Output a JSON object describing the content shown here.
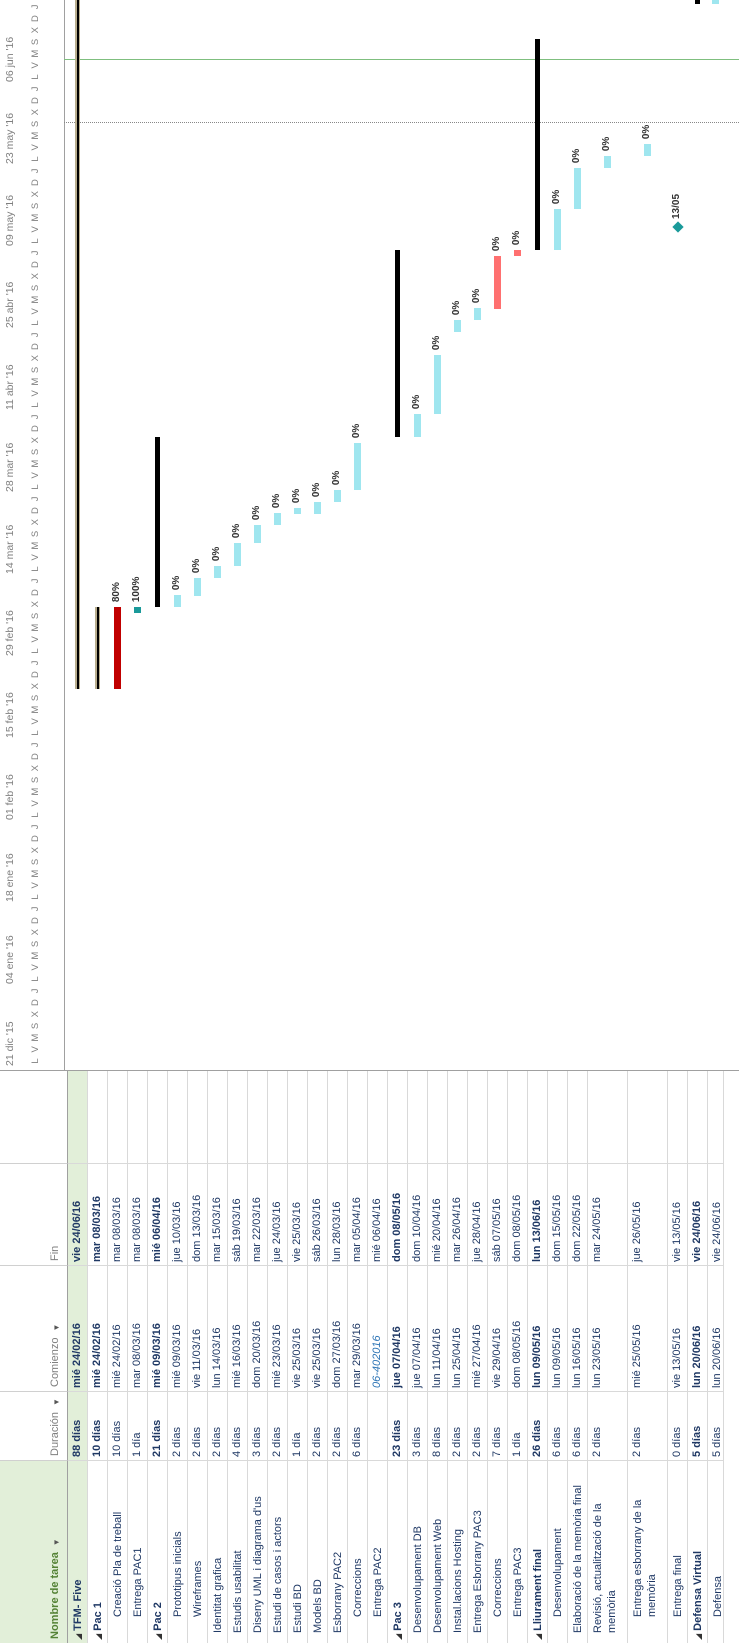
{
  "headers": {
    "name": "Nombre de tarea",
    "duration": "Duración",
    "start": "Comienzo",
    "end": "Fin"
  },
  "rows": [
    {
      "name": "TFM- Five",
      "dur": "88 días",
      "start": "mié 24/02/16",
      "end": "vie 24/06/16",
      "level": 0,
      "summary": true,
      "collapse": true,
      "hl": true
    },
    {
      "name": "Pac 1",
      "dur": "10 días",
      "start": "mié 24/02/16",
      "end": "mar 08/03/16",
      "level": 0,
      "summary": true,
      "collapse": true
    },
    {
      "name": "Creació Pla de treball",
      "dur": "10 días",
      "start": "mié 24/02/16",
      "end": "mar 08/03/16",
      "level": 2
    },
    {
      "name": "Entrega PAC1",
      "dur": "1 día",
      "start": "mar 08/03/16",
      "end": "mar 08/03/16",
      "level": 2
    },
    {
      "name": "Pac 2",
      "dur": "21 días",
      "start": "mié 09/03/16",
      "end": "mié 06/04/16",
      "level": 0,
      "summary": true,
      "collapse": true
    },
    {
      "name": "Prototipus inicials",
      "dur": "2 días",
      "start": "mié 09/03/16",
      "end": "jue 10/03/16",
      "level": 2
    },
    {
      "name": "Wireframes",
      "dur": "2 días",
      "start": "vie 11/03/16",
      "end": "dom 13/03/16",
      "level": 2
    },
    {
      "name": "Identitat grafica",
      "dur": "2 días",
      "start": "lun 14/03/16",
      "end": "mar 15/03/16",
      "level": 1
    },
    {
      "name": "Estudis usabilitat",
      "dur": "4 días",
      "start": "mié 16/03/16",
      "end": "sáb 19/03/16",
      "level": 1
    },
    {
      "name": "Diseny UML i diagrama d'us",
      "dur": "3 días",
      "start": "dom 20/03/16",
      "end": "mar 22/03/16",
      "level": 1
    },
    {
      "name": "Estudi de casos i actors",
      "dur": "2 días",
      "start": "mié 23/03/16",
      "end": "jue 24/03/16",
      "level": 1
    },
    {
      "name": "Estudi BD",
      "dur": "1 día",
      "start": "vie 25/03/16",
      "end": "vie 25/03/16",
      "level": 1
    },
    {
      "name": "Models BD",
      "dur": "2 días",
      "start": "vie 25/03/16",
      "end": "sáb 26/03/16",
      "level": 1
    },
    {
      "name": "Esborrany PAC2",
      "dur": "2 días",
      "start": "dom 27/03/16",
      "end": "lun 28/03/16",
      "level": 1
    },
    {
      "name": "Correccions",
      "dur": "6 días",
      "start": "mar 29/03/16",
      "end": "mar 05/04/16",
      "level": 2
    },
    {
      "name": "Entrega PAC2",
      "dur": "",
      "start": "06-402016",
      "end": "mié 06/04/16",
      "level": 2,
      "italicStart": true
    },
    {
      "name": "Pac 3",
      "dur": "23 días",
      "start": "jue 07/04/16",
      "end": "dom 08/05/16",
      "level": 0,
      "summary": true,
      "collapse": true
    },
    {
      "name": "Desenvolupament DB",
      "dur": "3 días",
      "start": "jue 07/04/16",
      "end": "dom 10/04/16",
      "level": 1
    },
    {
      "name": "Desenvolupament Web",
      "dur": "8 días",
      "start": "lun 11/04/16",
      "end": "mié 20/04/16",
      "level": 1
    },
    {
      "name": "Instal.lacions Hosting",
      "dur": "2 días",
      "start": "lun 25/04/16",
      "end": "mar 26/04/16",
      "level": 1
    },
    {
      "name": "Entrega Esborrany PAC3",
      "dur": "2 días",
      "start": "mié 27/04/16",
      "end": "jue 28/04/16",
      "level": 1
    },
    {
      "name": "Correccions",
      "dur": "7 días",
      "start": "vie 29/04/16",
      "end": "sáb 07/05/16",
      "level": 2
    },
    {
      "name": "Entrega PAC3",
      "dur": "1 día",
      "start": "dom 08/05/16",
      "end": "dom 08/05/16",
      "level": 2
    },
    {
      "name": "Lliurament final",
      "dur": "26 días",
      "start": "lun 09/05/16",
      "end": "lun 13/06/16",
      "level": 0,
      "summary": true,
      "collapse": true
    },
    {
      "name": "Desenvolupament",
      "dur": "6 días",
      "start": "lun 09/05/16",
      "end": "dom 15/05/16",
      "level": 2
    },
    {
      "name": "Elaboració de la memòria final",
      "dur": "6 días",
      "start": "lun 16/05/16",
      "end": "dom 22/05/16",
      "level": 1
    },
    {
      "name": "Revisió, actualització de la memòria",
      "dur": "2 días",
      "start": "lun 23/05/16",
      "end": "mar 24/05/16",
      "level": 1,
      "tall": true
    },
    {
      "name": "Entrega esborrany de la memòria",
      "dur": "2 días",
      "start": "mié 25/05/16",
      "end": "jue 26/05/16",
      "level": 2,
      "tall": true
    },
    {
      "name": "Entrega final",
      "dur": "0 días",
      "start": "vie 13/05/16",
      "end": "vie 13/05/16",
      "level": 2
    },
    {
      "name": "Defensa Virtual",
      "dur": "5 días",
      "start": "lun 20/06/16",
      "end": "vie 24/06/16",
      "level": 0,
      "summary": true,
      "collapse": true
    },
    {
      "name": "Defensa",
      "dur": "5 días",
      "start": "lun 20/06/16",
      "end": "vie 24/06/16",
      "level": 2,
      "partial": true
    }
  ],
  "timescale": {
    "weeks": [
      "21 dic '15",
      "04 ene '16",
      "18 ene '16",
      "01 feb '16",
      "15 feb '16",
      "29 feb '16",
      "14 mar '16",
      "28 mar '16",
      "11 abr '16",
      "25 abr '16",
      "09 may '16",
      "23 may '16",
      "06 jun '16"
    ],
    "days": [
      "L",
      "V",
      "M",
      "S",
      "X",
      "D",
      "J"
    ]
  },
  "gantt": {
    "labels": [
      "80%",
      "100%",
      "0%",
      "0%",
      "0%",
      "0%",
      "0%",
      "0%",
      "0%",
      "0%",
      "0%",
      "0%",
      "0%",
      "0%",
      "0%",
      "0%",
      "0%",
      "0%",
      "0%",
      "0%",
      "0%",
      "0%"
    ],
    "milestone_pac2": "06/04",
    "milestone_final": "13/05"
  },
  "colors": {
    "header_green": "#e2efd9",
    "bar_light": "#9fe6ef",
    "bar_red": "#ff7070",
    "bar_darkred": "#c00000",
    "summary": "#000000",
    "milestone": "#1a9a9a",
    "today_line": "#7fbf7f"
  }
}
